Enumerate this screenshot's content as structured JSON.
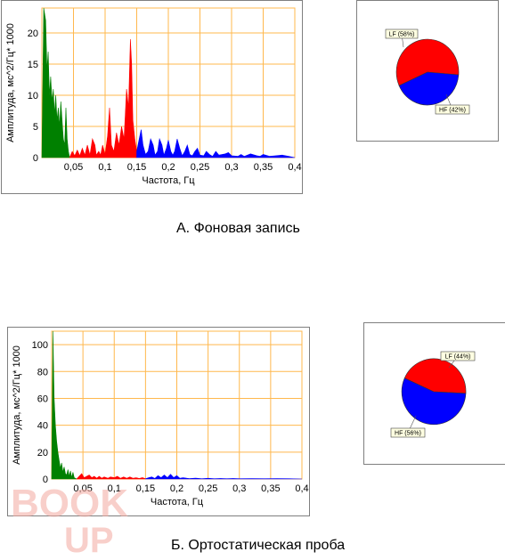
{
  "chart_data": [
    {
      "type": "area",
      "xlabel": "Частота, Гц",
      "ylabel": "Амплитуда, мс^2/Гц* 1000",
      "xlim": [
        0,
        0.4
      ],
      "ylim": [
        0,
        24
      ],
      "x_ticks": [
        "0,05",
        "0,1",
        "0,15",
        "0,2",
        "0,25",
        "0,3",
        "0,35",
        "0,4"
      ],
      "y_ticks": [
        "0",
        "5",
        "10",
        "15",
        "20"
      ],
      "grid": true,
      "series": [
        {
          "color": "#008000",
          "points": [
            [
              0.0,
              0
            ],
            [
              0.003,
              24
            ],
            [
              0.006,
              22
            ],
            [
              0.008,
              14
            ],
            [
              0.01,
              17
            ],
            [
              0.012,
              10
            ],
            [
              0.014,
              13
            ],
            [
              0.016,
              9
            ],
            [
              0.018,
              11
            ],
            [
              0.02,
              7
            ],
            [
              0.022,
              10
            ],
            [
              0.024,
              6
            ],
            [
              0.026,
              8
            ],
            [
              0.028,
              5
            ],
            [
              0.03,
              9
            ],
            [
              0.032,
              6
            ],
            [
              0.034,
              3
            ],
            [
              0.036,
              2
            ],
            [
              0.038,
              8
            ],
            [
              0.04,
              3
            ],
            [
              0.042,
              1
            ],
            [
              0.044,
              0
            ]
          ]
        },
        {
          "color": "#ff0000",
          "points": [
            [
              0.044,
              0
            ],
            [
              0.048,
              1
            ],
            [
              0.052,
              0.3
            ],
            [
              0.056,
              1.2
            ],
            [
              0.06,
              0.3
            ],
            [
              0.064,
              1.5
            ],
            [
              0.068,
              0.4
            ],
            [
              0.072,
              2
            ],
            [
              0.076,
              0.4
            ],
            [
              0.08,
              3
            ],
            [
              0.084,
              2
            ],
            [
              0.086,
              0.4
            ],
            [
              0.09,
              1
            ],
            [
              0.093,
              0.4
            ],
            [
              0.096,
              2
            ],
            [
              0.1,
              0.5
            ],
            [
              0.104,
              3.5
            ],
            [
              0.107,
              8
            ],
            [
              0.11,
              2
            ],
            [
              0.114,
              1
            ],
            [
              0.118,
              4
            ],
            [
              0.122,
              2
            ],
            [
              0.126,
              5
            ],
            [
              0.13,
              3
            ],
            [
              0.134,
              11
            ],
            [
              0.137,
              8
            ],
            [
              0.14,
              19
            ],
            [
              0.142,
              15
            ],
            [
              0.144,
              6
            ],
            [
              0.147,
              3
            ],
            [
              0.15,
              1
            ]
          ]
        },
        {
          "color": "#0000ff",
          "points": [
            [
              0.15,
              1
            ],
            [
              0.154,
              3
            ],
            [
              0.157,
              4.5
            ],
            [
              0.16,
              2
            ],
            [
              0.164,
              0.5
            ],
            [
              0.168,
              1
            ],
            [
              0.172,
              3
            ],
            [
              0.176,
              2
            ],
            [
              0.179,
              0.4
            ],
            [
              0.183,
              1
            ],
            [
              0.186,
              3
            ],
            [
              0.19,
              2
            ],
            [
              0.193,
              0.4
            ],
            [
              0.197,
              1.5
            ],
            [
              0.2,
              2.8
            ],
            [
              0.204,
              1
            ],
            [
              0.207,
              0.4
            ],
            [
              0.21,
              1
            ],
            [
              0.214,
              3
            ],
            [
              0.218,
              1.5
            ],
            [
              0.222,
              0.3
            ],
            [
              0.226,
              1
            ],
            [
              0.23,
              2
            ],
            [
              0.234,
              0.5
            ],
            [
              0.238,
              0.3
            ],
            [
              0.242,
              1
            ],
            [
              0.246,
              1.5
            ],
            [
              0.25,
              0.4
            ],
            [
              0.256,
              0.3
            ],
            [
              0.26,
              1
            ],
            [
              0.265,
              0.5
            ],
            [
              0.27,
              0.2
            ],
            [
              0.275,
              1
            ],
            [
              0.28,
              0.4
            ],
            [
              0.29,
              0.6
            ],
            [
              0.295,
              0.8
            ],
            [
              0.3,
              0.3
            ],
            [
              0.31,
              0.2
            ],
            [
              0.315,
              0.5
            ],
            [
              0.32,
              0.2
            ],
            [
              0.33,
              0.6
            ],
            [
              0.34,
              0.3
            ],
            [
              0.345,
              0.2
            ],
            [
              0.35,
              0.5
            ],
            [
              0.36,
              0.2
            ],
            [
              0.37,
              0.3
            ],
            [
              0.38,
              0.4
            ],
            [
              0.39,
              0.2
            ],
            [
              0.4,
              0
            ]
          ]
        }
      ]
    },
    {
      "type": "pie",
      "slices": [
        {
          "label": "LF (58%)",
          "value": 58,
          "color": "#ff0000"
        },
        {
          "label": "HF (42%)",
          "value": 42,
          "color": "#0000ff"
        }
      ]
    },
    {
      "type": "area",
      "xlabel": "Частота, Гц",
      "ylabel": "Амплитуда, мс^2/Гц* 1000",
      "xlim": [
        0,
        0.4
      ],
      "ylim": [
        0,
        110
      ],
      "x_ticks": [
        "0,05",
        "0,1",
        "0,15",
        "0,2",
        "0,25",
        "0,3",
        "0,35",
        "0,4"
      ],
      "y_ticks": [
        "0",
        "20",
        "40",
        "60",
        "80",
        "100"
      ],
      "grid": true,
      "series": [
        {
          "color": "#008000",
          "points": [
            [
              0.0,
              0
            ],
            [
              0.002,
              110
            ],
            [
              0.004,
              60
            ],
            [
              0.006,
              40
            ],
            [
              0.008,
              28
            ],
            [
              0.01,
              20
            ],
            [
              0.012,
              14
            ],
            [
              0.014,
              8
            ],
            [
              0.016,
              12
            ],
            [
              0.018,
              5
            ],
            [
              0.02,
              9
            ],
            [
              0.022,
              4
            ],
            [
              0.024,
              3
            ],
            [
              0.026,
              7
            ],
            [
              0.028,
              2
            ],
            [
              0.03,
              6
            ],
            [
              0.032,
              1
            ],
            [
              0.034,
              5
            ],
            [
              0.036,
              1
            ],
            [
              0.04,
              0
            ]
          ]
        },
        {
          "color": "#ff0000",
          "points": [
            [
              0.04,
              0
            ],
            [
              0.044,
              2
            ],
            [
              0.048,
              4
            ],
            [
              0.052,
              1
            ],
            [
              0.056,
              2
            ],
            [
              0.06,
              3
            ],
            [
              0.064,
              1
            ],
            [
              0.068,
              2
            ],
            [
              0.072,
              0.6
            ],
            [
              0.076,
              2
            ],
            [
              0.08,
              0.6
            ],
            [
              0.084,
              1.5
            ],
            [
              0.09,
              0.6
            ],
            [
              0.094,
              1.5
            ],
            [
              0.1,
              1
            ],
            [
              0.105,
              2
            ],
            [
              0.11,
              0.5
            ],
            [
              0.115,
              1.5
            ],
            [
              0.12,
              0.5
            ],
            [
              0.125,
              1.5
            ],
            [
              0.13,
              0.5
            ],
            [
              0.135,
              1
            ],
            [
              0.14,
              0.4
            ],
            [
              0.145,
              1
            ],
            [
              0.15,
              0.2
            ]
          ]
        },
        {
          "color": "#0000ff",
          "points": [
            [
              0.15,
              0.2
            ],
            [
              0.155,
              1
            ],
            [
              0.16,
              1.5
            ],
            [
              0.165,
              0.4
            ],
            [
              0.17,
              2.5
            ],
            [
              0.175,
              1
            ],
            [
              0.18,
              3
            ],
            [
              0.185,
              1
            ],
            [
              0.19,
              3.5
            ],
            [
              0.195,
              1
            ],
            [
              0.2,
              2.5
            ],
            [
              0.205,
              0.5
            ],
            [
              0.21,
              1
            ],
            [
              0.22,
              0.3
            ],
            [
              0.23,
              0.6
            ],
            [
              0.24,
              0.2
            ],
            [
              0.25,
              0.5
            ],
            [
              0.26,
              0.2
            ],
            [
              0.27,
              0.4
            ],
            [
              0.28,
              0.2
            ],
            [
              0.29,
              0.4
            ],
            [
              0.3,
              0.2
            ],
            [
              0.32,
              0.3
            ],
            [
              0.34,
              0.2
            ],
            [
              0.36,
              0.3
            ],
            [
              0.38,
              0.2
            ],
            [
              0.4,
              0
            ]
          ]
        }
      ]
    },
    {
      "type": "pie",
      "slices": [
        {
          "label": "LF (44%)",
          "value": 44,
          "color": "#ff0000"
        },
        {
          "label": "HF (56%)",
          "value": 56,
          "color": "#0000ff"
        }
      ]
    }
  ],
  "captions": {
    "top": "А. Фоновая запись",
    "bottom": "Б. Ортостатическая проба"
  },
  "watermark": {
    "line1": "BOOK",
    "line2": "UP"
  },
  "colors": {
    "grid": "#ffb84d",
    "panel_border": "#7f7f7f"
  }
}
